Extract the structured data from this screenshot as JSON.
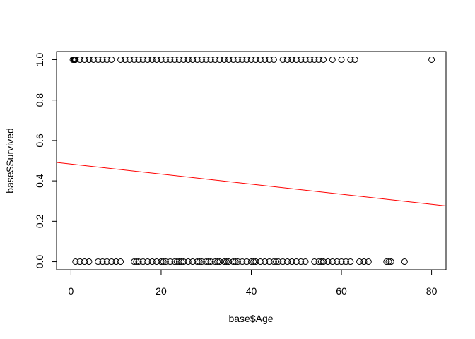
{
  "chart_data": {
    "type": "scatter",
    "title": "",
    "xlabel": "base$Age",
    "ylabel": "base$Survived",
    "xlim": [
      -3.2,
      83.2
    ],
    "ylim": [
      -0.04,
      1.04
    ],
    "x_ticks": [
      0,
      20,
      40,
      60,
      80
    ],
    "x_tick_labels": [
      "0",
      "20",
      "40",
      "60",
      "80"
    ],
    "y_ticks": [
      0.0,
      0.2,
      0.4,
      0.6,
      0.8,
      1.0
    ],
    "y_tick_labels": [
      "0.0",
      "0.2",
      "0.4",
      "0.6",
      "0.8",
      "1.0"
    ],
    "grid": false,
    "point_style": "open-circle",
    "point_color": "#000000",
    "series": [
      {
        "y": 1,
        "x": [
          0.42,
          0.67,
          0.75,
          0.83,
          0.92,
          1,
          2,
          3,
          4,
          5,
          6,
          7,
          8,
          9,
          11,
          12,
          13,
          14,
          15,
          16,
          17,
          18,
          19,
          20,
          21,
          22,
          23,
          24,
          25,
          26,
          27,
          28,
          29,
          30,
          31,
          32,
          33,
          34,
          35,
          36,
          37,
          38,
          39,
          40,
          41,
          42,
          43,
          44,
          45,
          47,
          48,
          49,
          50,
          51,
          52,
          53,
          54,
          55,
          56,
          58,
          60,
          62,
          63,
          80
        ]
      },
      {
        "y": 0,
        "x": [
          1,
          2,
          3,
          4,
          6,
          7,
          8,
          9,
          10,
          11,
          14,
          14.5,
          15,
          16,
          17,
          18,
          19,
          20,
          20.5,
          21,
          22,
          23,
          23.5,
          24,
          24.5,
          25,
          26,
          27,
          28,
          28.5,
          29,
          30,
          30.5,
          31,
          32,
          32.5,
          33,
          34,
          34.5,
          35,
          36,
          36.5,
          37,
          38,
          39,
          40,
          40.5,
          41,
          42,
          43,
          44,
          45,
          45.5,
          46,
          47,
          48,
          49,
          50,
          51,
          52,
          54,
          55,
          55.5,
          56,
          57,
          58,
          59,
          60,
          61,
          62,
          64,
          65,
          66,
          70,
          70.5,
          71,
          74
        ]
      }
    ],
    "regression_line": {
      "color": "#ff0000",
      "intercept": 0.4834,
      "slope": -0.00249
    }
  }
}
